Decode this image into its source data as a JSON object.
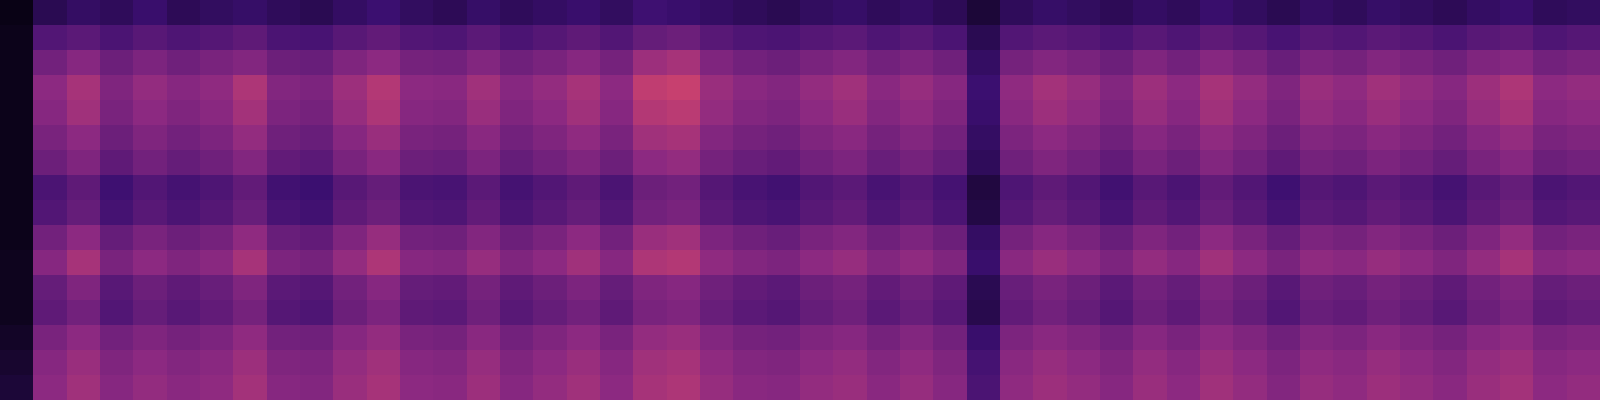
{
  "chart_data": {
    "type": "heatmap",
    "tick_labels": false,
    "grid": false,
    "xlim": [
      0,
      48
    ],
    "ylim": [
      0,
      16
    ],
    "zlim": [
      0,
      100
    ],
    "cells": [
      [
        4,
        18,
        22,
        20,
        24,
        19,
        21,
        23,
        20,
        18,
        22,
        25,
        21,
        19,
        23,
        20,
        22,
        24,
        21,
        26,
        24,
        22,
        20,
        18,
        21,
        23,
        20,
        22,
        19,
        12,
        20,
        23,
        21,
        19,
        22,
        20,
        24,
        21,
        18,
        22,
        20,
        23,
        21,
        19,
        22,
        24,
        20,
        21
      ],
      [
        5,
        32,
        35,
        30,
        34,
        31,
        33,
        36,
        30,
        29,
        34,
        37,
        32,
        31,
        35,
        30,
        33,
        36,
        32,
        38,
        40,
        34,
        31,
        30,
        33,
        35,
        31,
        34,
        30,
        18,
        32,
        35,
        33,
        30,
        34,
        31,
        36,
        33,
        29,
        34,
        32,
        35,
        33,
        30,
        34,
        36,
        31,
        33
      ],
      [
        5,
        42,
        48,
        40,
        45,
        41,
        44,
        47,
        40,
        39,
        46,
        50,
        43,
        42,
        47,
        41,
        44,
        48,
        43,
        55,
        58,
        46,
        42,
        40,
        44,
        47,
        42,
        45,
        41,
        22,
        43,
        47,
        44,
        40,
        46,
        42,
        48,
        44,
        39,
        45,
        43,
        47,
        44,
        41,
        46,
        48,
        42,
        44
      ],
      [
        5,
        50,
        58,
        46,
        52,
        48,
        51,
        60,
        47,
        45,
        55,
        62,
        50,
        49,
        56,
        48,
        52,
        58,
        50,
        66,
        68,
        54,
        49,
        47,
        52,
        56,
        49,
        53,
        48,
        25,
        51,
        57,
        53,
        47,
        55,
        50,
        58,
        52,
        46,
        54,
        51,
        56,
        52,
        48,
        55,
        60,
        50,
        52
      ],
      [
        5,
        48,
        56,
        44,
        50,
        46,
        49,
        57,
        45,
        43,
        53,
        60,
        48,
        47,
        54,
        46,
        50,
        56,
        48,
        62,
        64,
        52,
        47,
        45,
        50,
        54,
        47,
        51,
        46,
        24,
        49,
        55,
        51,
        45,
        53,
        48,
        56,
        50,
        44,
        52,
        49,
        54,
        50,
        46,
        53,
        58,
        48,
        50
      ],
      [
        5,
        44,
        50,
        40,
        46,
        42,
        45,
        52,
        41,
        39,
        48,
        54,
        44,
        43,
        49,
        42,
        46,
        51,
        44,
        56,
        58,
        47,
        43,
        41,
        46,
        49,
        43,
        47,
        42,
        22,
        45,
        50,
        46,
        41,
        48,
        44,
        51,
        46,
        40,
        47,
        45,
        49,
        46,
        42,
        48,
        52,
        44,
        46
      ],
      [
        5,
        40,
        46,
        36,
        42,
        38,
        41,
        47,
        37,
        35,
        44,
        49,
        40,
        39,
        45,
        38,
        42,
        46,
        40,
        50,
        52,
        43,
        39,
        37,
        42,
        45,
        39,
        43,
        38,
        20,
        41,
        46,
        42,
        37,
        44,
        40,
        47,
        42,
        36,
        43,
        41,
        45,
        42,
        38,
        44,
        48,
        40,
        42
      ],
      [
        5,
        30,
        36,
        26,
        32,
        28,
        31,
        37,
        27,
        25,
        34,
        38,
        30,
        29,
        35,
        28,
        32,
        36,
        30,
        40,
        42,
        33,
        29,
        27,
        32,
        35,
        29,
        33,
        28,
        14,
        31,
        36,
        32,
        27,
        34,
        30,
        37,
        32,
        26,
        33,
        31,
        35,
        32,
        28,
        34,
        38,
        30,
        32
      ],
      [
        5,
        32,
        38,
        28,
        34,
        30,
        33,
        39,
        29,
        27,
        36,
        40,
        32,
        31,
        37,
        30,
        34,
        38,
        32,
        42,
        44,
        35,
        31,
        29,
        34,
        37,
        31,
        35,
        30,
        15,
        33,
        38,
        34,
        29,
        36,
        32,
        39,
        34,
        28,
        35,
        33,
        37,
        34,
        30,
        36,
        40,
        32,
        34
      ],
      [
        5,
        42,
        50,
        38,
        44,
        40,
        43,
        51,
        39,
        37,
        46,
        53,
        42,
        41,
        47,
        40,
        44,
        50,
        42,
        54,
        56,
        45,
        41,
        39,
        44,
        47,
        41,
        45,
        40,
        22,
        43,
        48,
        44,
        39,
        46,
        42,
        50,
        44,
        38,
        45,
        43,
        47,
        44,
        40,
        46,
        52,
        42,
        44
      ],
      [
        6,
        48,
        58,
        44,
        50,
        46,
        49,
        58,
        45,
        43,
        52,
        60,
        48,
        47,
        53,
        46,
        50,
        56,
        48,
        60,
        62,
        51,
        47,
        45,
        50,
        53,
        47,
        51,
        46,
        24,
        49,
        54,
        50,
        45,
        52,
        48,
        56,
        50,
        44,
        51,
        49,
        53,
        50,
        46,
        52,
        58,
        48,
        50
      ],
      [
        6,
        38,
        46,
        34,
        40,
        36,
        39,
        46,
        35,
        33,
        42,
        48,
        38,
        37,
        43,
        36,
        40,
        45,
        38,
        46,
        48,
        41,
        37,
        35,
        40,
        43,
        37,
        41,
        36,
        18,
        39,
        44,
        40,
        35,
        42,
        38,
        45,
        40,
        34,
        41,
        39,
        43,
        40,
        36,
        42,
        46,
        38,
        40
      ],
      [
        6,
        36,
        42,
        32,
        38,
        34,
        37,
        43,
        33,
        31,
        40,
        45,
        36,
        35,
        41,
        34,
        38,
        42,
        36,
        44,
        46,
        39,
        35,
        33,
        38,
        41,
        35,
        39,
        34,
        17,
        37,
        42,
        38,
        33,
        40,
        36,
        43,
        38,
        32,
        39,
        37,
        41,
        38,
        34,
        40,
        44,
        36,
        38
      ],
      [
        8,
        44,
        50,
        42,
        46,
        43,
        45,
        51,
        42,
        41,
        48,
        52,
        44,
        43,
        49,
        42,
        46,
        50,
        44,
        52,
        54,
        47,
        43,
        42,
        46,
        48,
        43,
        47,
        42,
        24,
        45,
        49,
        46,
        42,
        48,
        44,
        50,
        46,
        41,
        47,
        45,
        49,
        46,
        43,
        48,
        51,
        44,
        46
      ],
      [
        10,
        48,
        54,
        46,
        50,
        47,
        49,
        55,
        46,
        45,
        52,
        56,
        48,
        47,
        53,
        46,
        50,
        54,
        48,
        56,
        58,
        51,
        47,
        46,
        50,
        52,
        47,
        51,
        46,
        28,
        49,
        53,
        50,
        46,
        52,
        48,
        54,
        50,
        45,
        51,
        49,
        53,
        50,
        47,
        52,
        55,
        48,
        50
      ],
      [
        12,
        50,
        56,
        48,
        52,
        49,
        51,
        57,
        48,
        47,
        54,
        58,
        50,
        49,
        55,
        48,
        52,
        56,
        50,
        58,
        60,
        53,
        49,
        48,
        52,
        54,
        49,
        53,
        48,
        30,
        51,
        55,
        52,
        48,
        54,
        50,
        56,
        52,
        47,
        53,
        51,
        55,
        52,
        49,
        54,
        57,
        50,
        52
      ]
    ]
  }
}
